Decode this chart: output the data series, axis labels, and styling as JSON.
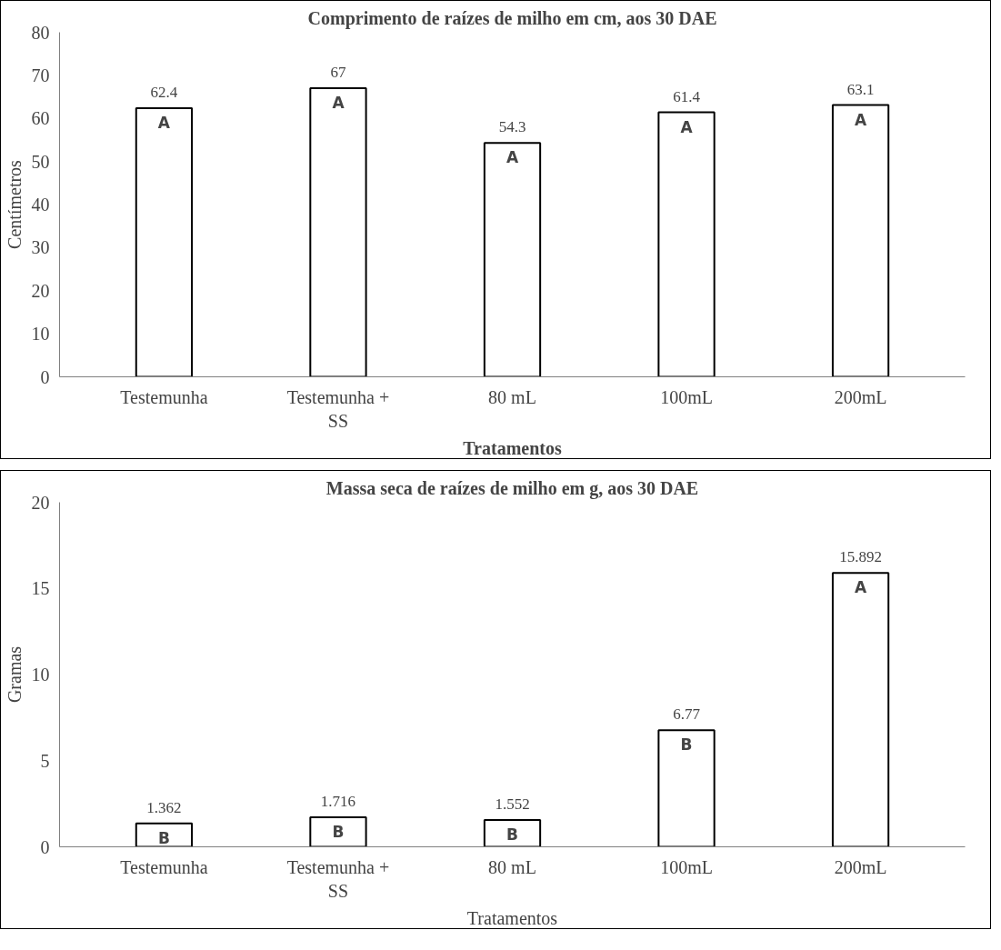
{
  "chart_data": [
    {
      "type": "bar",
      "title": "Comprimento de raízes de milho em cm, aos 30 DAE",
      "xlabel": "Tratamentos",
      "ylabel": "Centímetros",
      "categories": [
        "Testemunha",
        "Testemunha + SS",
        "80 mL",
        "100mL",
        "200mL"
      ],
      "values": [
        62.4,
        67,
        54.3,
        61.4,
        63.1
      ],
      "color": "#ffffff",
      "data_labels": true,
      "ylim": [
        0,
        80
      ],
      "yticks": [
        0,
        10,
        20,
        30,
        40,
        50,
        60,
        70,
        80
      ],
      "grid": false,
      "annotations": [
        {
          "text": "A",
          "x": "Testemunha",
          "y": 62.4
        },
        {
          "text": "A",
          "x": "Testemunha + SS",
          "y": 67
        },
        {
          "text": "A",
          "x": "80 mL",
          "y": 54.3
        },
        {
          "text": "A",
          "x": "100mL",
          "y": 61.4
        },
        {
          "text": "A",
          "x": "200mL",
          "y": 63.1
        }
      ]
    },
    {
      "type": "bar",
      "title": "Massa seca de raízes de milho em g, aos 30 DAE",
      "xlabel": "Tratamentos",
      "ylabel": "Gramas",
      "categories": [
        "Testemunha",
        "Testemunha + SS",
        "80 mL",
        "100mL",
        "200mL"
      ],
      "values": [
        1.362,
        1.716,
        1.552,
        6.77,
        15.892
      ],
      "color": "#ffffff",
      "data_labels": true,
      "ylim": [
        0,
        20
      ],
      "yticks": [
        0,
        5,
        10,
        15,
        20
      ],
      "grid": false,
      "annotations": [
        {
          "text": "B",
          "x": "Testemunha",
          "y": 1.362
        },
        {
          "text": "B",
          "x": "Testemunha + SS",
          "y": 1.716
        },
        {
          "text": "B",
          "x": "80 mL",
          "y": 1.552
        },
        {
          "text": "B",
          "x": "100mL",
          "y": 6.77
        },
        {
          "text": "A",
          "x": "200mL",
          "y": 15.892
        }
      ]
    }
  ]
}
